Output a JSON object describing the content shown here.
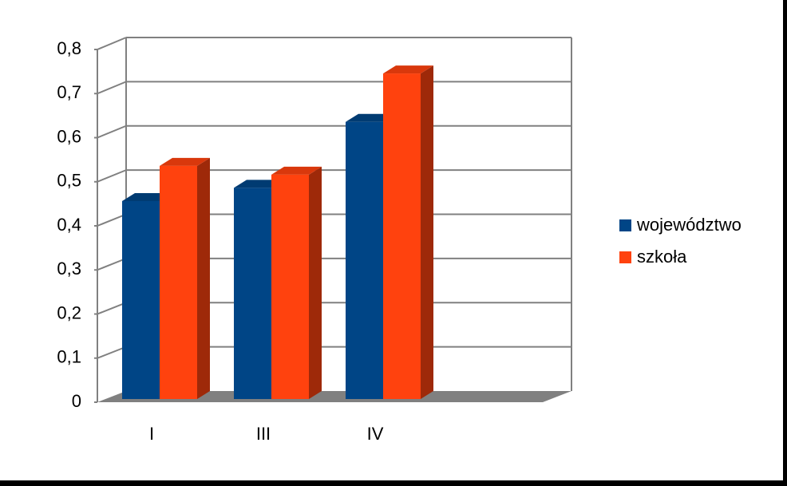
{
  "chart_data": {
    "type": "bar3d",
    "categories": [
      "I",
      "III",
      "IV",
      null
    ],
    "series": [
      {
        "name": "województwo",
        "color": "#004586",
        "values": [
          0.45,
          0.48,
          0.63,
          null
        ]
      },
      {
        "name": "szkoła",
        "color": "#ff420e",
        "values": [
          0.53,
          0.51,
          0.74,
          null
        ]
      }
    ],
    "ylim": [
      0,
      0.8
    ],
    "yticks": [
      0,
      {
        "value": 0.1,
        "label": "0,1"
      },
      {
        "value": 0.2,
        "label": "0,2"
      },
      {
        "value": 0.3,
        "label": "0,3"
      },
      {
        "value": 0.4,
        "label": "0,4"
      },
      {
        "value": 0.5,
        "label": "0,5"
      },
      {
        "value": 0.6,
        "label": "0,6"
      },
      {
        "value": 0.7,
        "label": "0,7"
      },
      {
        "value": 0.8,
        "label": "0,8"
      }
    ],
    "grid": true,
    "legend": "right"
  }
}
